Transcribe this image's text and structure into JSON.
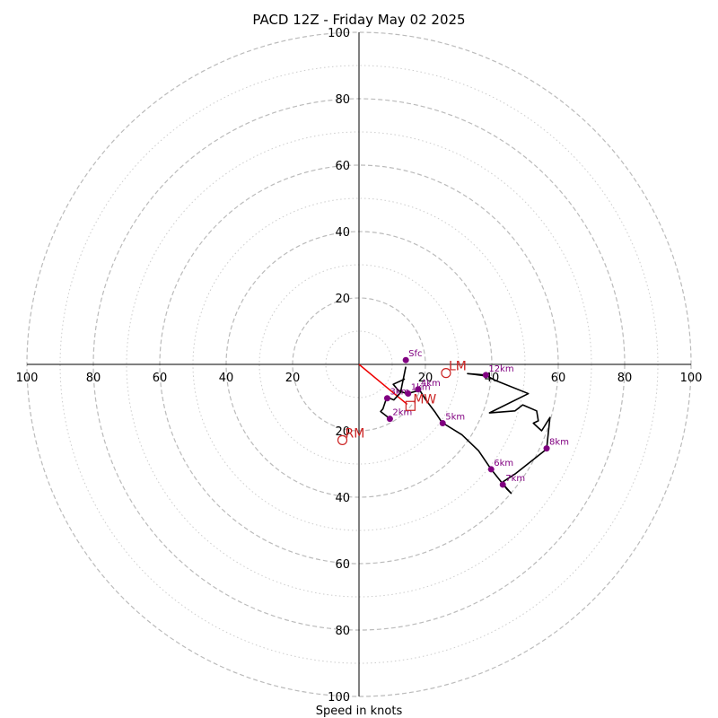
{
  "chart_data": {
    "type": "scatter",
    "title": "PACD 12Z - Friday May 02 2025",
    "xlabel": "Speed in knots",
    "ylabel": "",
    "xlim": [
      -100,
      100
    ],
    "ylim": [
      -100,
      100
    ],
    "rings_major": [
      20,
      40,
      60,
      80,
      100
    ],
    "rings_minor": [
      10,
      30,
      50,
      70,
      90
    ],
    "tick_labels": [
      "100",
      "80",
      "60",
      "40",
      "20",
      "20",
      "40",
      "60",
      "80",
      "100"
    ],
    "hodograph": [
      [
        13.8,
        -4.4
      ],
      [
        10.3,
        -6.0
      ],
      [
        12.0,
        -8.0
      ],
      [
        14.5,
        -8.8
      ],
      [
        18.3,
        -7.8
      ],
      [
        20.0,
        -10.5
      ],
      [
        23.0,
        -14.5
      ],
      [
        25.0,
        -17.5
      ],
      [
        31.0,
        -21.2
      ],
      [
        36.0,
        -26.0
      ],
      [
        39.8,
        -31.6
      ],
      [
        43.0,
        -35.6
      ],
      [
        44.5,
        -37.5
      ],
      [
        45.8,
        -38.8
      ],
      [
        43.0,
        -35.6
      ],
      [
        47.0,
        -33.0
      ],
      [
        56.5,
        -25.5
      ],
      [
        57.5,
        -16.0
      ],
      [
        55.0,
        -20.0
      ],
      [
        52.5,
        -17.7
      ],
      [
        54.0,
        -17.0
      ],
      [
        53.5,
        -14.0
      ],
      [
        49.3,
        -12.2
      ],
      [
        47.0,
        -14.0
      ],
      [
        39.3,
        -14.6
      ],
      [
        51.0,
        -8.8
      ],
      [
        41.0,
        -4.8
      ],
      [
        38.0,
        -3.2
      ],
      [
        32.7,
        -2.8
      ],
      [
        34.6,
        -3.0
      ],
      [
        37.6,
        -3.4
      ]
    ],
    "hodograph_upper": [
      [
        14.1,
        -0.7
      ],
      [
        12.5,
        -8.5
      ],
      [
        10.5,
        -10.7
      ],
      [
        8.8,
        -10.0
      ],
      [
        8.0,
        -11.0
      ],
      [
        7.2,
        -13.4
      ],
      [
        6.5,
        -14.2
      ],
      [
        8.2,
        -15.5
      ],
      [
        9.3,
        -16.4
      ]
    ],
    "height_markers": [
      {
        "label": "Sfc",
        "x": 14.1,
        "y": 1.3
      },
      {
        "label": "1km",
        "x": 14.8,
        "y": -8.8
      },
      {
        "label": "2km",
        "x": 9.3,
        "y": -16.4
      },
      {
        "label": "3km",
        "x": 8.5,
        "y": -10.2
      },
      {
        "label": "4km",
        "x": 17.8,
        "y": -7.5
      },
      {
        "label": "5km",
        "x": 25.2,
        "y": -17.7
      },
      {
        "label": "6km",
        "x": 39.8,
        "y": -31.6
      },
      {
        "label": "7km",
        "x": 43.3,
        "y": -36.2
      },
      {
        "label": "8km",
        "x": 56.5,
        "y": -25.3
      },
      {
        "label": "12km",
        "x": 38.2,
        "y": -3.2
      }
    ],
    "storm_motion": [
      {
        "label": "RM",
        "x": -5.0,
        "y": -22.8
      },
      {
        "label": "LM",
        "x": 26.2,
        "y": -2.6
      },
      {
        "label": "MW",
        "x": 15.5,
        "y": -12.5
      }
    ],
    "red_line": [
      [
        0,
        0
      ],
      [
        14.5,
        -12.0
      ]
    ],
    "colors": {
      "hodograph": "#000000",
      "markers": "#800080",
      "storm_motion": "#cc2222",
      "grid": "#bbbbbb"
    },
    "grid": true
  }
}
